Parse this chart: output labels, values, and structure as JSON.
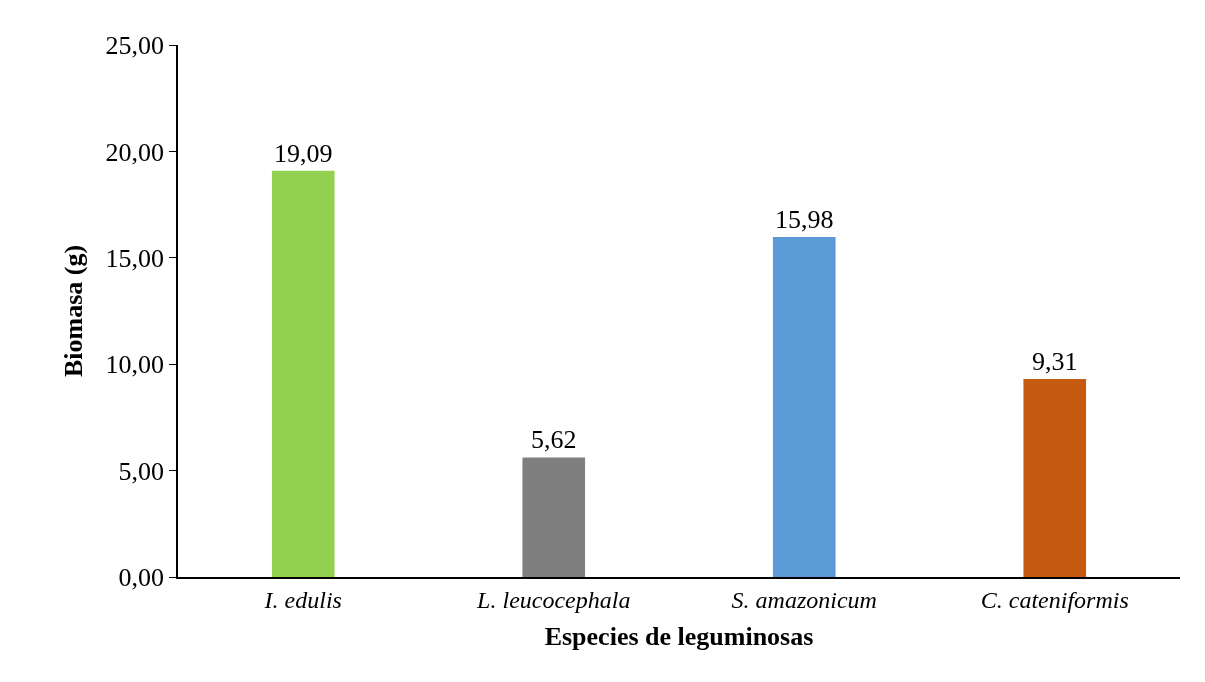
{
  "chart_data": {
    "type": "bar",
    "xlabel": "Especies de leguminosas",
    "ylabel": "Biomasa (g)",
    "categories": [
      "I. edulis",
      "L. leucocephala",
      "S. amazonicum",
      "C. cateniformis"
    ],
    "values": [
      19.09,
      5.62,
      15.98,
      9.31
    ],
    "colors": [
      "#92d050",
      "#7f7f7f",
      "#5b9bd5",
      "#c55a11"
    ],
    "value_labels": [
      "19,09",
      "5,62",
      "15,98",
      "9,31"
    ],
    "ylim": [
      0,
      25
    ],
    "yticks": [
      {
        "value": 0,
        "label": "0,00"
      },
      {
        "value": 5,
        "label": "5,00"
      },
      {
        "value": 10,
        "label": "10,00"
      },
      {
        "value": 15,
        "label": "15,00"
      },
      {
        "value": 20,
        "label": "20,00"
      },
      {
        "value": 25,
        "label": "25,00"
      }
    ],
    "legend": false
  }
}
